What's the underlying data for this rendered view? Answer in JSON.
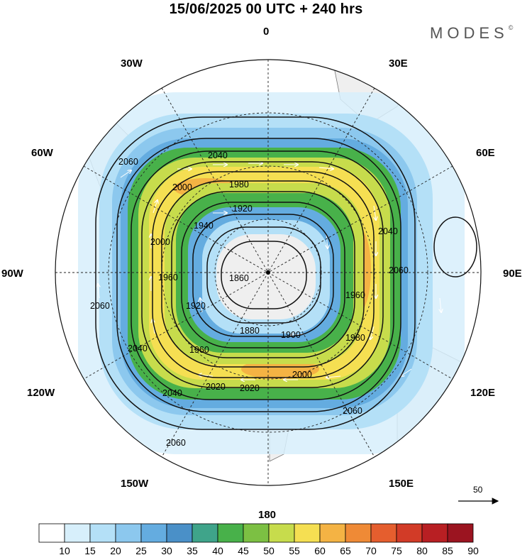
{
  "title": "15/06/2025  00 UTC  + 240 hrs",
  "brand": "MODES",
  "brand_mark": "©",
  "meridian_labels": {
    "n0": "0",
    "n30e": "30E",
    "n60e": "60E",
    "n90e": "90E",
    "n120e": "120E",
    "n150e": "150E",
    "n180": "180",
    "n150w": "150W",
    "n120w": "120W",
    "n90w": "90W",
    "n60w": "60W",
    "n30w": "30W"
  },
  "contour_labels": {
    "c1860": "1860",
    "c1880": "1880",
    "c1900": "1900",
    "c1920a": "1920",
    "c1920b": "1920",
    "c1940": "1940",
    "c1960a": "1960",
    "c1960b": "1960",
    "c1960c": "1960",
    "c1980a": "1980",
    "c1980b": "1980",
    "c2000a": "2000",
    "c2000b": "2000",
    "c2000c": "2000",
    "c2020a": "2020",
    "c2020b": "2020",
    "c2040a": "2040",
    "c2040b": "2040",
    "c2040c": "2040",
    "c2040d": "2040",
    "c2060a": "2060",
    "c2060b": "2060",
    "c2060c": "2060",
    "c2060d": "2060",
    "c2060e": "2060"
  },
  "vector_scale": "50",
  "colorbar": {
    "labels": [
      "10",
      "15",
      "20",
      "25",
      "30",
      "35",
      "40",
      "45",
      "50",
      "55",
      "60",
      "65",
      "70",
      "75",
      "80",
      "85",
      "90"
    ],
    "colors": [
      "#ffffff",
      "#d7effb",
      "#b4e0f7",
      "#8cc8ee",
      "#64ace0",
      "#4a90c8",
      "#3fa48a",
      "#48b14a",
      "#7cc043",
      "#c7dc4c",
      "#f5df52",
      "#f4b344",
      "#ef8a36",
      "#e55e2e",
      "#d23b27",
      "#b81f23",
      "#9b1420"
    ]
  },
  "colors": {
    "land": "#efefef",
    "coast": "#777777",
    "contour": "#111111"
  }
}
